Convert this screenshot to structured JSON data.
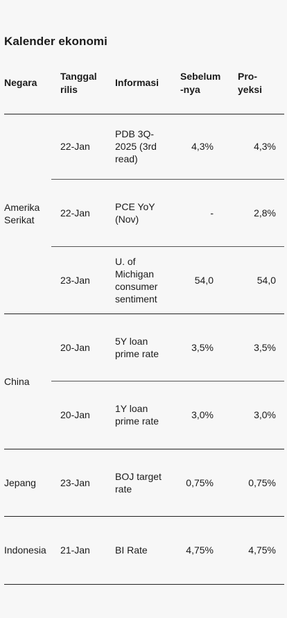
{
  "title": "Kalender ekonomi",
  "headers": {
    "negara": "Negara",
    "tanggal": [
      "Tanggal",
      "rilis"
    ],
    "informasi": "Informasi",
    "sebelumnya": [
      "Sebelum",
      "-nya"
    ],
    "proyeksi": [
      "Pro-",
      "yeksi"
    ]
  },
  "groups": [
    {
      "country": [
        "Amerika",
        "Serikat"
      ],
      "rows": [
        {
          "date": "22-Jan",
          "info": [
            "PDB 3Q-",
            "2025 (3rd",
            "read)"
          ],
          "prev": "4,3%",
          "proj": "4,3%"
        },
        {
          "date": "22-Jan",
          "info": [
            "PCE YoY",
            "(Nov)"
          ],
          "prev": "-",
          "proj": "2,8%"
        },
        {
          "date": "23-Jan",
          "info": [
            "U. of",
            "Michigan",
            "consumer",
            "sentiment"
          ],
          "prev": "54,0",
          "proj": "54,0"
        }
      ]
    },
    {
      "country": [
        "China"
      ],
      "rows": [
        {
          "date": "20-Jan",
          "info": [
            "5Y loan",
            "prime rate"
          ],
          "prev": "3,5%",
          "proj": "3,5%"
        },
        {
          "date": "20-Jan",
          "info": [
            "1Y loan",
            "prime rate"
          ],
          "prev": "3,0%",
          "proj": "3,0%"
        }
      ]
    },
    {
      "country": [
        "Jepang"
      ],
      "rows": [
        {
          "date": "23-Jan",
          "info": [
            "BOJ target",
            "rate"
          ],
          "prev": "0,75%",
          "proj": "0,75%"
        }
      ]
    },
    {
      "country": [
        "Indonesia"
      ],
      "rows": [
        {
          "date": "21-Jan",
          "info": [
            "BI Rate"
          ],
          "prev": "4,75%",
          "proj": "4,75%"
        }
      ]
    }
  ]
}
